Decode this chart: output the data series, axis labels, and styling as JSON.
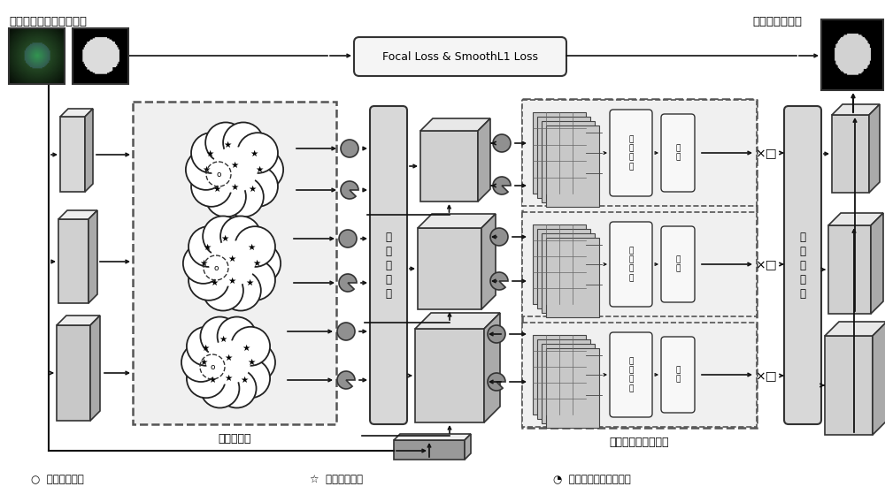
{
  "top_left_label": "输入的图像与异常的标注",
  "top_right_label": "预测的异常标注",
  "focal_loss_label": "Focal Loss & SmoothL1 Loss",
  "multiscale_prototype_label": "多尺度原型",
  "multiscale_attention_label": "多尺寸自注意力机制",
  "multiscale_fusion_label1": "多\n尺\n度\n融\n合",
  "multiscale_fusion_label2": "多\n尺\n度\n融\n合",
  "attn_label1": "自\n注\n意\n子",
  "attn_label2": "残\n差",
  "legend_circle": "○  输入的特征图",
  "legend_star": "☆  原型的特征图",
  "legend_pie": "◔  两个特征图之间的残差",
  "bg_color": "#ffffff"
}
